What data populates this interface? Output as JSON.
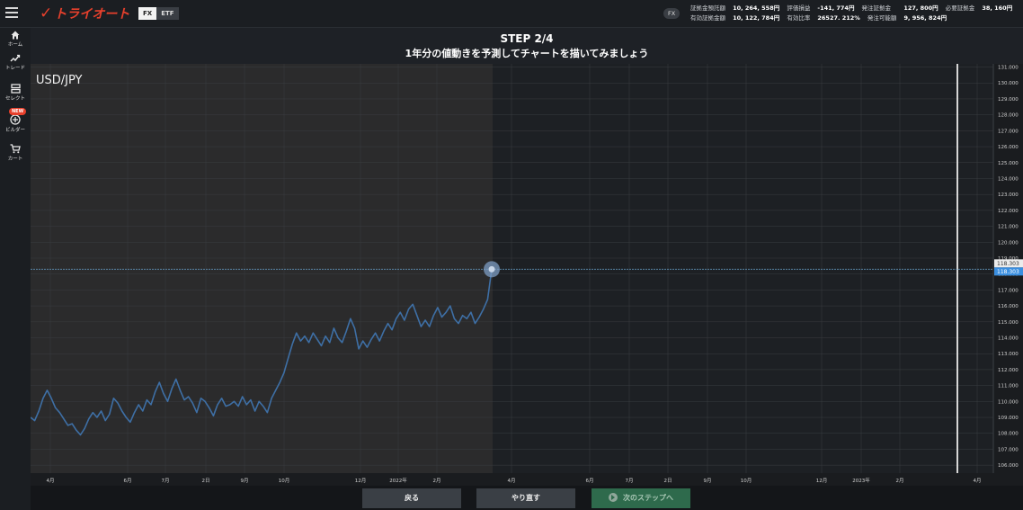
{
  "header": {
    "logo_mark": "✓",
    "logo_text": "トライオート",
    "segments": [
      {
        "label": "FX",
        "active": true
      },
      {
        "label": "ETF",
        "active": false
      }
    ],
    "account_badge": "FX",
    "account": {
      "row1": [
        {
          "label": "証拠金預託額",
          "value": "10, 264, 558円"
        },
        {
          "label": "評価損益",
          "value": "-141, 774円"
        },
        {
          "label": "発注証拠金",
          "value": "127, 800円"
        },
        {
          "label": "必要証拠金",
          "value": "38, 160円"
        }
      ],
      "row2": [
        {
          "label": "有効証拠金額",
          "value": "10, 122, 784円"
        },
        {
          "label": "有効比率",
          "value": "26527. 212%"
        },
        {
          "label": "発注可能額",
          "value": "9, 956, 824円"
        }
      ]
    }
  },
  "sidebar": {
    "items": [
      {
        "label": "ホーム",
        "icon": "home-icon"
      },
      {
        "label": "トレード",
        "icon": "trade-icon"
      },
      {
        "label": "セレクト",
        "icon": "select-icon"
      },
      {
        "label": "ビルダー",
        "icon": "builder-icon",
        "badge": "NEW"
      },
      {
        "label": "カート",
        "icon": "cart-icon"
      }
    ]
  },
  "step": {
    "title": "STEP 2/4",
    "subtitle": "1年分の値動きを予測してチャートを描いてみましょう"
  },
  "chart_data": {
    "type": "line",
    "title": "USD/JPY",
    "x_labels_past": [
      "4月",
      "6月",
      "7月",
      "2日",
      "9月",
      "10月",
      "12月",
      "2022年",
      "2月"
    ],
    "x_labels_future": [
      "4月",
      "6月",
      "7月",
      "2日",
      "9月",
      "10月",
      "12月",
      "2023年",
      "2月",
      "4月"
    ],
    "ylim": [
      105.5,
      131.2
    ],
    "y_ticks": [
      106.0,
      107.0,
      108.0,
      109.0,
      110.0,
      111.0,
      112.0,
      113.0,
      114.0,
      115.0,
      116.0,
      117.0,
      118.0,
      119.0,
      120.0,
      121.0,
      122.0,
      123.0,
      124.0,
      125.0,
      126.0,
      127.0,
      128.0,
      129.0,
      130.0,
      131.0
    ],
    "current_price": "118.303",
    "current_price_value": 118.303,
    "series": [
      {
        "values": [
          109.0,
          108.8,
          109.4,
          110.2,
          110.7,
          110.2,
          109.6,
          109.3,
          108.9,
          108.5,
          108.6,
          108.2,
          107.9,
          108.3,
          108.9,
          109.3,
          109.0,
          109.4,
          108.8,
          109.2,
          110.2,
          109.9,
          109.4,
          109.0,
          108.7,
          109.3,
          109.8,
          109.4,
          110.1,
          109.8,
          110.6,
          111.2,
          110.5,
          110.0,
          110.8,
          111.4,
          110.7,
          110.1,
          110.3,
          109.9,
          109.3,
          110.2,
          110.0,
          109.6,
          109.1,
          109.8,
          110.2,
          109.7,
          109.8,
          110.0,
          109.7,
          110.3,
          109.8,
          110.1,
          109.4,
          110.0,
          109.7,
          109.3,
          110.2,
          110.7,
          111.2,
          111.8,
          112.7,
          113.6,
          114.3,
          113.8,
          114.1,
          113.7,
          114.3,
          113.9,
          113.5,
          114.1,
          113.7,
          114.6,
          114.0,
          113.7,
          114.4,
          115.2,
          114.6,
          113.3,
          113.8,
          113.4,
          113.9,
          114.3,
          113.8,
          114.4,
          114.9,
          114.5,
          115.2,
          115.6,
          115.1,
          115.8,
          116.1,
          115.4,
          114.7,
          115.1,
          114.7,
          115.4,
          115.9,
          115.3,
          115.6,
          116.0,
          115.2,
          114.9,
          115.4,
          115.2,
          115.6,
          114.9,
          115.3,
          115.8,
          116.4,
          118.3
        ]
      }
    ]
  },
  "buttons": {
    "back": "戻る",
    "redo": "やり直す",
    "next": "次のステップへ"
  }
}
